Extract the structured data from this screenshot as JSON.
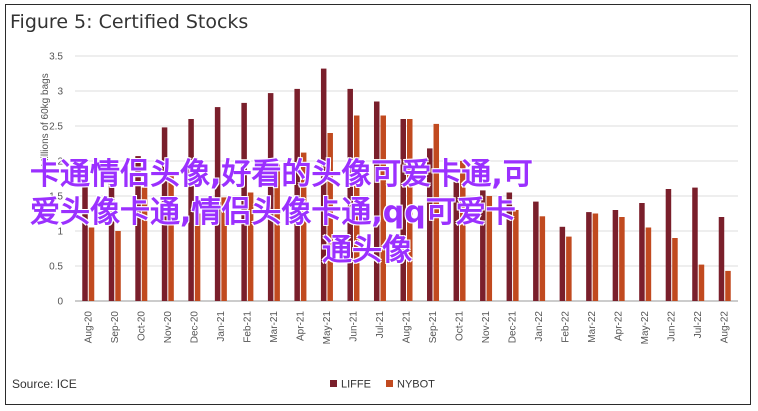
{
  "title": "Figure 5: Certified Stocks",
  "source": "Source: ICE",
  "colors": {
    "LIFFE": "#7a1f2b",
    "NYBOT": "#c14a1f",
    "grid": "#dcdcdc",
    "axis": "#999999"
  },
  "watermark": {
    "line1": "卡通情侣头像,好看的头像可爱卡通,可",
    "line2": "爱头像卡通,情侣头像卡通,qq可爱卡",
    "line3": "通头像"
  },
  "chart_data": {
    "type": "bar",
    "title": "Figure 5: Certified Stocks",
    "ylabel": "Millions of 60kg bags",
    "ylim": [
      0,
      3.5
    ],
    "yticks": [
      0,
      0.5,
      1,
      1.5,
      2,
      2.5,
      3,
      3.5
    ],
    "categories": [
      "Aug-20",
      "Sep-20",
      "Oct-20",
      "Nov-20",
      "Dec-20",
      "Jan-21",
      "Feb-21",
      "Mar-21",
      "Apr-21",
      "May-21",
      "Jun-21",
      "Jul-21",
      "Aug-21",
      "Sep-21",
      "Oct-21",
      "Nov-21",
      "Dec-21",
      "Jan-22",
      "Feb-22",
      "Mar-22",
      "Apr-22",
      "May-22",
      "Jun-22",
      "Jul-22",
      "Aug-22"
    ],
    "legend_position": "bottom",
    "grid": true,
    "series": [
      {
        "name": "LIFFE",
        "values": [
          1.72,
          1.7,
          2.07,
          2.48,
          2.6,
          2.77,
          2.83,
          2.97,
          3.03,
          3.32,
          3.03,
          2.85,
          2.6,
          2.18,
          1.72,
          1.58,
          1.55,
          1.42,
          1.06,
          1.27,
          1.3,
          1.4,
          1.6,
          1.62,
          1.2
        ]
      },
      {
        "name": "NYBOT",
        "values": [
          1.05,
          1.0,
          1.62,
          1.85,
          1.25,
          1.48,
          1.55,
          1.95,
          2.12,
          2.4,
          2.65,
          2.65,
          2.6,
          2.53,
          2.0,
          1.5,
          1.3,
          1.21,
          0.92,
          1.25,
          1.2,
          1.05,
          0.9,
          0.52,
          0.43
        ]
      }
    ]
  }
}
